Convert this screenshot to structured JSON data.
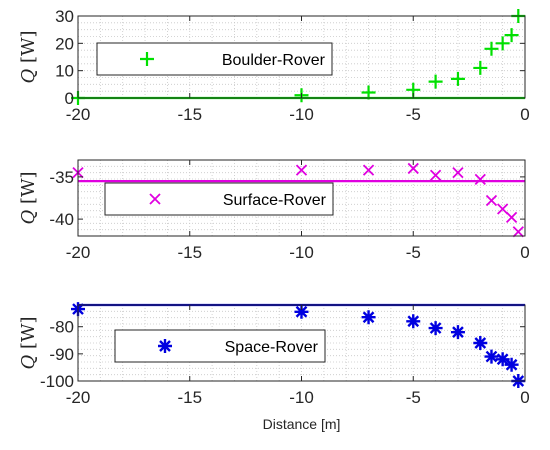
{
  "chart_data": [
    {
      "type": "scatter",
      "ylabel": "Q [W]",
      "xlabel": "",
      "xlim": [
        -20,
        0
      ],
      "ylim": [
        0,
        30
      ],
      "xticks": [
        -20,
        -15,
        -10,
        -5,
        0
      ],
      "yticks": [
        0,
        10,
        20,
        30
      ],
      "xtick_labels": [
        "-20",
        "-15",
        "-10",
        "-5",
        "0"
      ],
      "ytick_labels": [
        "0",
        "10",
        "20",
        "30"
      ],
      "grid": "minor-dotted",
      "legend": "left",
      "series": [
        {
          "name": "Boulder-Rover",
          "marker": "plus",
          "color": "#00e000",
          "x": [
            -20,
            -10,
            -7,
            -5,
            -4,
            -3,
            -2,
            -1.5,
            -1,
            -0.6,
            -0.3
          ],
          "y": [
            0,
            1,
            2,
            3,
            6,
            7,
            11,
            18,
            20,
            23,
            30
          ]
        }
      ],
      "reference_line": {
        "y": 0,
        "color": "#00e000"
      }
    },
    {
      "type": "scatter",
      "ylabel": "Q [W]",
      "xlabel": "",
      "xlim": [
        -20,
        0
      ],
      "ylim": [
        -42,
        -33
      ],
      "xticks": [
        -20,
        -15,
        -10,
        -5,
        0
      ],
      "yticks": [
        -40,
        -35
      ],
      "xtick_labels": [
        "-20",
        "-15",
        "-10",
        "-5",
        "0"
      ],
      "ytick_labels": [
        "-40",
        "-35"
      ],
      "grid": "minor-dotted",
      "legend": "left",
      "series": [
        {
          "name": "Surface-Rover",
          "marker": "x",
          "color": "#e000e0",
          "x": [
            -20,
            -10,
            -7,
            -5,
            -4,
            -3,
            -2,
            -1.5,
            -1,
            -0.6,
            -0.3
          ],
          "y": [
            -34.5,
            -34.2,
            -34.2,
            -34,
            -34.8,
            -34.5,
            -35.3,
            -37.8,
            -38.8,
            -39.8,
            -41.5
          ]
        }
      ],
      "reference_line": {
        "y": -35.5,
        "color": "#e000e0"
      }
    },
    {
      "type": "scatter",
      "ylabel": "Q [W]",
      "xlabel": "Distance [m]",
      "xlim": [
        -20,
        0
      ],
      "ylim": [
        -100,
        -72
      ],
      "xticks": [
        -20,
        -15,
        -10,
        -5,
        0
      ],
      "yticks": [
        -100,
        -90,
        -80
      ],
      "xtick_labels": [
        "-20",
        "-15",
        "-10",
        "-5",
        "0"
      ],
      "ytick_labels": [
        "-100",
        "-90",
        "-80"
      ],
      "grid": "minor-dotted",
      "legend": "left",
      "series": [
        {
          "name": "Space-Rover",
          "marker": "asterisk",
          "color": "#0000e0",
          "x": [
            -20,
            -10,
            -7,
            -5,
            -4,
            -3,
            -2,
            -1.5,
            -1,
            -0.6,
            -0.3
          ],
          "y": [
            -73.5,
            -74.5,
            -76.5,
            -78,
            -80.5,
            -82,
            -86,
            -91,
            -92,
            -94,
            -100
          ]
        }
      ],
      "reference_line": {
        "y": -72,
        "color": "#0000e0"
      }
    }
  ]
}
